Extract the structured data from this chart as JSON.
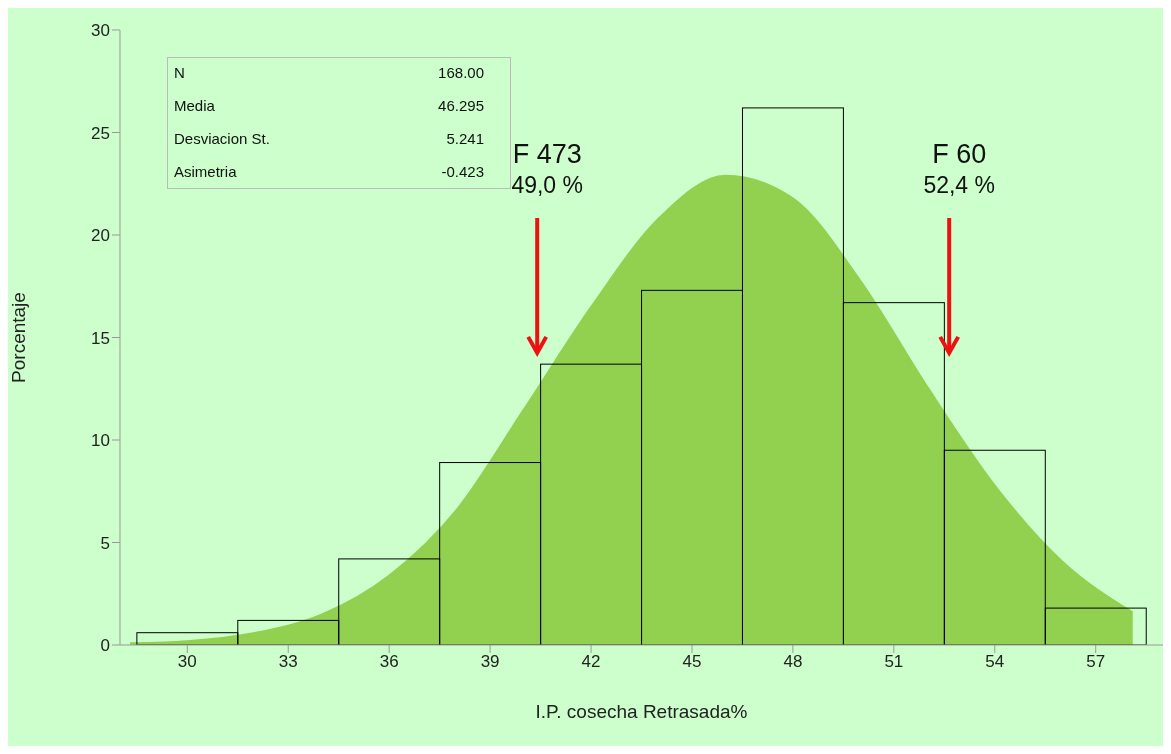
{
  "chart_data": {
    "type": "histogram",
    "xlabel": "I.P. cosecha Retrasada%",
    "ylabel": "Porcentaje",
    "bins": [
      28.5,
      31.5,
      34.5,
      37.5,
      40.5,
      43.5,
      46.5,
      49.5,
      52.5,
      55.5,
      58.5
    ],
    "values": [
      0.6,
      1.2,
      4.2,
      8.9,
      13.7,
      17.3,
      26.2,
      16.7,
      9.5,
      1.8
    ],
    "color": "#000000",
    "series": [
      {
        "type": "area",
        "color": "#92d050",
        "x": [
          28.3,
          30,
          32,
          34,
          36,
          38,
          40,
          42,
          44,
          46,
          48,
          50,
          52,
          54,
          56,
          58.1
        ],
        "values": [
          0.1,
          0.2,
          0.6,
          1.5,
          3.4,
          6.6,
          11.5,
          16.5,
          20.8,
          22.9,
          21.8,
          17.8,
          12.6,
          7.8,
          4.1,
          1.6
        ]
      }
    ],
    "xlim": [
      28,
      59
    ],
    "xticks": [
      30,
      33,
      36,
      39,
      42,
      45,
      48,
      51,
      54,
      57
    ],
    "ylim": [
      0,
      30
    ],
    "yticks": [
      0,
      5,
      10,
      15,
      20,
      25,
      30
    ],
    "grid": false,
    "legend": false,
    "annotations": [
      "F 473\n49,0 %",
      "F 60\n52,4 %",
      "N",
      "168.00",
      "Media",
      "46.295",
      "Desviacion St.",
      "5.241",
      "Asimetria",
      "-0.423"
    ]
  }
}
